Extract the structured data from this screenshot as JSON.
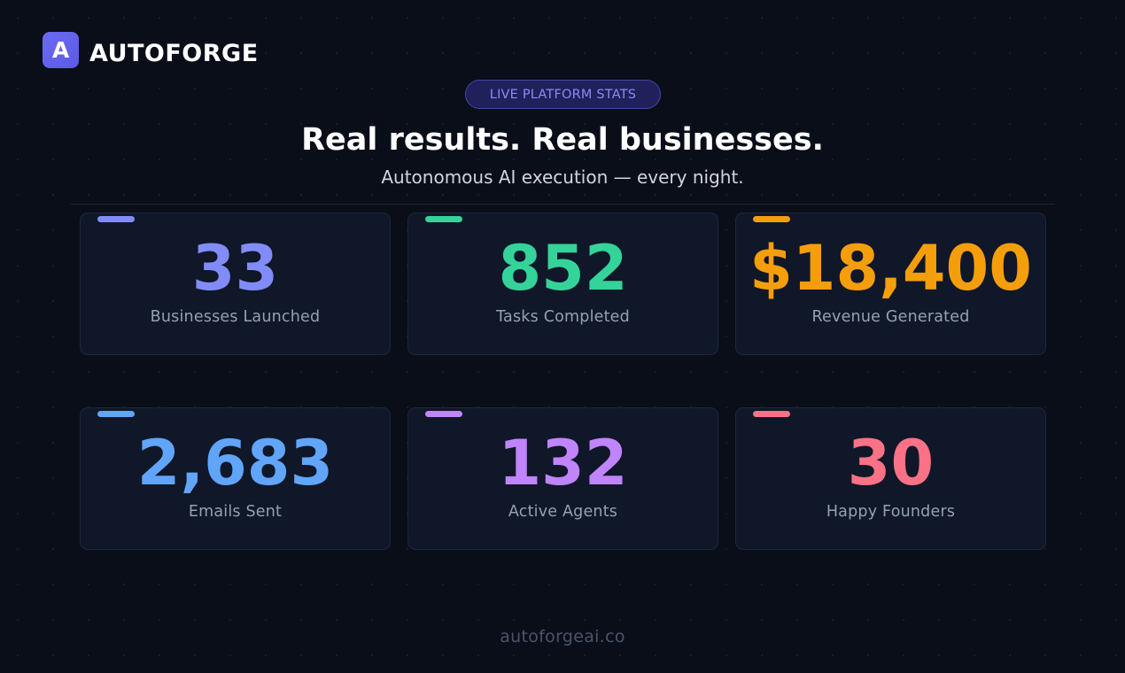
{
  "brand": {
    "logo_letter": "A",
    "name": "AUTOFORGE",
    "logo_color": "#6366f1"
  },
  "badge": {
    "label": "LIVE PLATFORM STATS"
  },
  "hero": {
    "title": "Real results. Real businesses.",
    "subtitle": "Autonomous AI execution — every night."
  },
  "stats": [
    {
      "value": "33",
      "label": "Businesses Launched",
      "color": "#818cf8"
    },
    {
      "value": "852",
      "label": "Tasks Completed",
      "color": "#34d399"
    },
    {
      "value": "$18,400",
      "label": "Revenue Generated",
      "color": "#f59e0b"
    },
    {
      "value": "2,683",
      "label": "Emails Sent",
      "color": "#60a5fa"
    },
    {
      "value": "132",
      "label": "Active Agents",
      "color": "#c084fc"
    },
    {
      "value": "30",
      "label": "Happy Founders",
      "color": "#fb7185"
    }
  ],
  "footer": {
    "url": "autoforgeai.co"
  }
}
